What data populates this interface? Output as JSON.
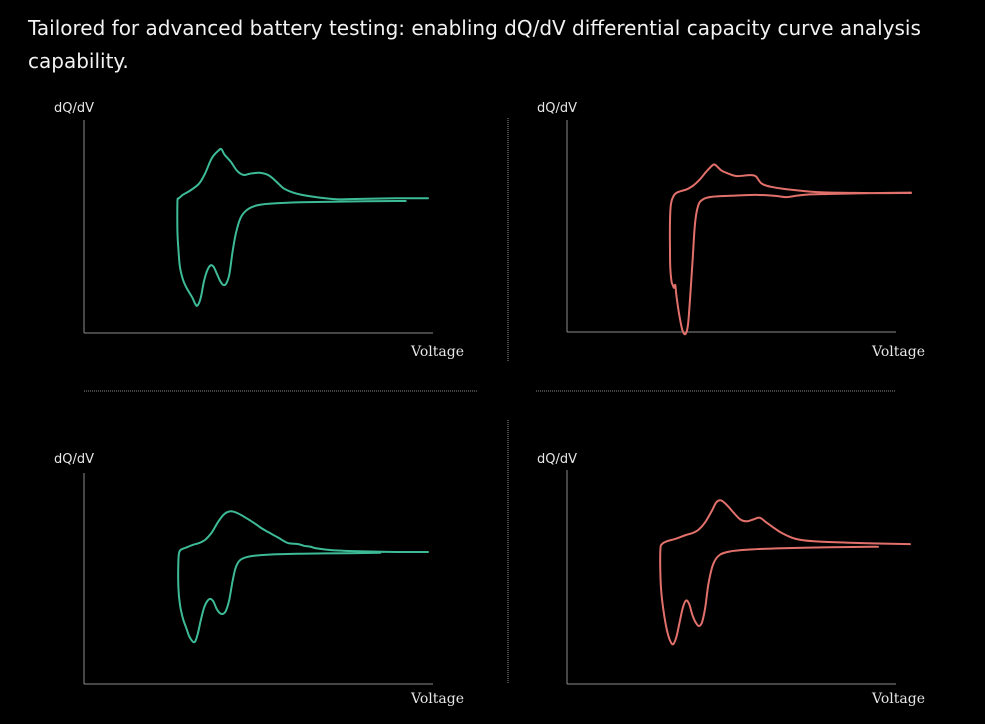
{
  "headline": "Tailored for advanced battery testing: enabling dQ/dV differential capacity curve analysis capability.",
  "colors": {
    "background": "#000000",
    "axis": "#8c8c8c",
    "divider": "#8c8c8c",
    "green": "#3dbb97",
    "red": "#e2706b"
  },
  "chart_data": [
    {
      "type": "line",
      "ylabel": "dQ/dV",
      "xlabel": "Voltage",
      "color": "green",
      "xlim": [
        0,
        100
      ],
      "ylim": [
        0,
        100
      ],
      "series": [
        {
          "values": [
            [
              100,
              68
            ],
            [
              90,
              68
            ],
            [
              75,
              67.5
            ],
            [
              70,
              67.6
            ],
            [
              60,
              70
            ],
            [
              55,
              73
            ],
            [
              53,
              76
            ],
            [
              50,
              80.5
            ],
            [
              47,
              82
            ],
            [
              44,
              81.5
            ],
            [
              42,
              80.8
            ],
            [
              40,
              83
            ],
            [
              38,
              88
            ],
            [
              36,
              92
            ],
            [
              35,
              95
            ],
            [
              34,
              94
            ],
            [
              32,
              90
            ],
            [
              30,
              82
            ],
            [
              28,
              76
            ],
            [
              25,
              72
            ],
            [
              23,
              70
            ],
            [
              22,
              68.5
            ],
            [
              21.5,
              67.8
            ],
            [
              21.2,
              66
            ],
            [
              21.2,
              50
            ],
            [
              21.5,
              40
            ],
            [
              22,
              30
            ],
            [
              23,
              23
            ],
            [
              24,
              19
            ],
            [
              25,
              16
            ],
            [
              26,
              13
            ],
            [
              26.8,
              10
            ],
            [
              27.5,
              9
            ],
            [
              28.5,
              13
            ],
            [
              29.5,
              22
            ],
            [
              30.5,
              28
            ],
            [
              31.5,
              31
            ],
            [
              32.5,
              30.5
            ],
            [
              33.5,
              27
            ],
            [
              34.5,
              23
            ],
            [
              35.5,
              20.5
            ],
            [
              36.5,
              21
            ],
            [
              37.5,
              26
            ],
            [
              38.5,
              38
            ],
            [
              39.5,
              48
            ],
            [
              41,
              57
            ],
            [
              43,
              61.5
            ],
            [
              46,
              64
            ],
            [
              50,
              65
            ],
            [
              60,
              65.8
            ],
            [
              75,
              66.2
            ],
            [
              90,
              66.5
            ],
            [
              93,
              66.5
            ]
          ]
        }
      ]
    },
    {
      "type": "line",
      "ylabel": "dQ/dV",
      "xlabel": "Voltage",
      "color": "red",
      "xlim": [
        0,
        100
      ],
      "ylim": [
        0,
        100
      ],
      "series": [
        {
          "values": [
            [
              100,
              75
            ],
            [
              85,
              75
            ],
            [
              70,
              75.5
            ],
            [
              60,
              77
            ],
            [
              55,
              78.3
            ],
            [
              52,
              80
            ],
            [
              50,
              84
            ],
            [
              48,
              84.5
            ],
            [
              44,
              84
            ],
            [
              41,
              85.5
            ],
            [
              39,
              87
            ],
            [
              37,
              90
            ],
            [
              36,
              89.5
            ],
            [
              34,
              86
            ],
            [
              32,
              82
            ],
            [
              30,
              79
            ],
            [
              28,
              77
            ],
            [
              26,
              76
            ],
            [
              24.5,
              75
            ],
            [
              23.5,
              73
            ],
            [
              22.8,
              69
            ],
            [
              22.5,
              60
            ],
            [
              22.5,
              45
            ],
            [
              22.6,
              35
            ],
            [
              23,
              28
            ],
            [
              23.4,
              26
            ],
            [
              23.8,
              24.5
            ],
            [
              24.2,
              26
            ],
            [
              24.6,
              20
            ],
            [
              25.5,
              10
            ],
            [
              26.5,
              2
            ],
            [
              27.5,
              0
            ],
            [
              28.3,
              5
            ],
            [
              29,
              20
            ],
            [
              29.8,
              40
            ],
            [
              30.5,
              58
            ],
            [
              31.5,
              68
            ],
            [
              33,
              71.5
            ],
            [
              36,
              73
            ],
            [
              42,
              73.5
            ],
            [
              50,
              74
            ],
            [
              56,
              73.5
            ],
            [
              60,
              72.8
            ],
            [
              63,
              73.5
            ],
            [
              67,
              74.2
            ],
            [
              75,
              74.5
            ],
            [
              90,
              75
            ],
            [
              100,
              75.2
            ]
          ]
        }
      ]
    },
    {
      "type": "line",
      "ylabel": "dQ/dV",
      "xlabel": "Voltage",
      "color": "green",
      "xlim": [
        0,
        100
      ],
      "ylim": [
        0,
        100
      ],
      "series": [
        {
          "values": [
            [
              100,
              65
            ],
            [
              90,
              65
            ],
            [
              80,
              65.3
            ],
            [
              70,
              66
            ],
            [
              65,
              67
            ],
            [
              63,
              68
            ],
            [
              61,
              68.5
            ],
            [
              59,
              69.5
            ],
            [
              56,
              70
            ],
            [
              53,
              73
            ],
            [
              50,
              76
            ],
            [
              48,
              78
            ],
            [
              46,
              80.5
            ],
            [
              43,
              84
            ],
            [
              40,
              87
            ],
            [
              38,
              88
            ],
            [
              36,
              86.5
            ],
            [
              34,
              82
            ],
            [
              32,
              76
            ],
            [
              30,
              72
            ],
            [
              28,
              70
            ],
            [
              26,
              69
            ],
            [
              24,
              67.5
            ],
            [
              22.5,
              66.5
            ],
            [
              21.8,
              65
            ],
            [
              21.5,
              60
            ],
            [
              21.5,
              45
            ],
            [
              22,
              35
            ],
            [
              23,
              27
            ],
            [
              24,
              22
            ],
            [
              25,
              17
            ],
            [
              26.5,
              14
            ],
            [
              27.5,
              18
            ],
            [
              28.5,
              26
            ],
            [
              29.5,
              33
            ],
            [
              30.5,
              37
            ],
            [
              31.5,
              38.5
            ],
            [
              32.5,
              37
            ],
            [
              33.5,
              33
            ],
            [
              34.5,
              30.5
            ],
            [
              35.5,
              30
            ],
            [
              36.5,
              32
            ],
            [
              37.5,
              38
            ],
            [
              38.5,
              48
            ],
            [
              39.5,
              56
            ],
            [
              41,
              60.5
            ],
            [
              44,
              62.5
            ],
            [
              50,
              63.5
            ],
            [
              60,
              64
            ],
            [
              75,
              64.3
            ],
            [
              85,
              64.5
            ]
          ]
        }
      ]
    },
    {
      "type": "line",
      "ylabel": "dQ/dV",
      "xlabel": "Voltage",
      "color": "red",
      "xlim": [
        0,
        100
      ],
      "ylim": [
        0,
        100
      ],
      "series": [
        {
          "values": [
            [
              100,
              67
            ],
            [
              90,
              67.3
            ],
            [
              80,
              67.8
            ],
            [
              70,
              68.5
            ],
            [
              64,
              70
            ],
            [
              60,
              73
            ],
            [
              57,
              76.5
            ],
            [
              55,
              79
            ],
            [
              53,
              81.5
            ],
            [
              51,
              80.5
            ],
            [
              49,
              79.5
            ],
            [
              47,
              80.5
            ],
            [
              45,
              84
            ],
            [
              43,
              88
            ],
            [
              41,
              91
            ],
            [
              39.5,
              90
            ],
            [
              38,
              85
            ],
            [
              36,
              79
            ],
            [
              34,
              75
            ],
            [
              32,
              73
            ],
            [
              30,
              72
            ],
            [
              27,
              70
            ],
            [
              24,
              68.5
            ],
            [
              22.5,
              67
            ],
            [
              22,
              64
            ],
            [
              22,
              50
            ],
            [
              22.3,
              40
            ],
            [
              23,
              30
            ],
            [
              24,
              20
            ],
            [
              25,
              14
            ],
            [
              26,
              12
            ],
            [
              27,
              16
            ],
            [
              28,
              24
            ],
            [
              29,
              32
            ],
            [
              30,
              36
            ],
            [
              31,
              34
            ],
            [
              32,
              28
            ],
            [
              33,
              24
            ],
            [
              34,
              22
            ],
            [
              35,
              24
            ],
            [
              36,
              32
            ],
            [
              37,
              45
            ],
            [
              38.5,
              56
            ],
            [
              40.5,
              61
            ],
            [
              44,
              63
            ],
            [
              50,
              64
            ],
            [
              60,
              64.7
            ],
            [
              75,
              65.2
            ],
            [
              88,
              65.5
            ],
            [
              90,
              65.5
            ]
          ]
        }
      ]
    }
  ]
}
